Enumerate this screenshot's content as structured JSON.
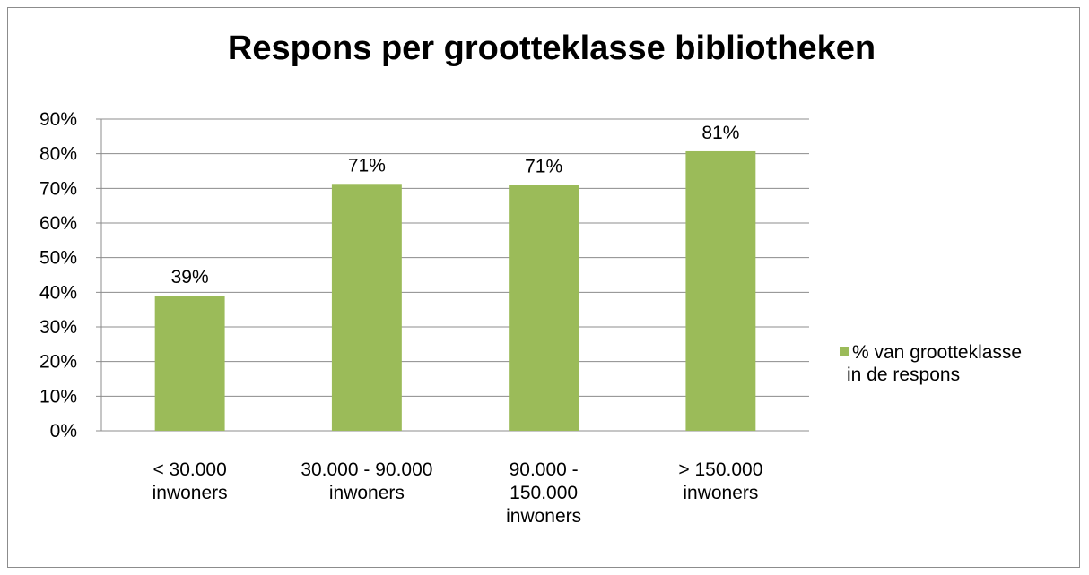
{
  "chart_data": {
    "type": "bar",
    "title": "Respons per grootteklasse bibliotheken",
    "categories": [
      [
        "< 30.000",
        "inwoners"
      ],
      [
        "30.000 - 90.000",
        "inwoners"
      ],
      [
        "90.000 -",
        "150.000",
        "inwoners"
      ],
      [
        "> 150.000",
        "inwoners"
      ]
    ],
    "series": [
      {
        "name": [
          "% van grootteklasse",
          "in de respons"
        ],
        "values": [
          39,
          71.3,
          71,
          80.7
        ],
        "labels": [
          "39%",
          "71%",
          "71%",
          "81%"
        ],
        "color": "#9bbb59"
      }
    ],
    "ylim": [
      0,
      90
    ],
    "yticks": [
      0,
      10,
      20,
      30,
      40,
      50,
      60,
      70,
      80,
      90
    ],
    "ytick_labels": [
      "0%",
      "10%",
      "20%",
      "30%",
      "40%",
      "50%",
      "60%",
      "70%",
      "80%",
      "90%"
    ],
    "grid": true,
    "legend": "right"
  }
}
